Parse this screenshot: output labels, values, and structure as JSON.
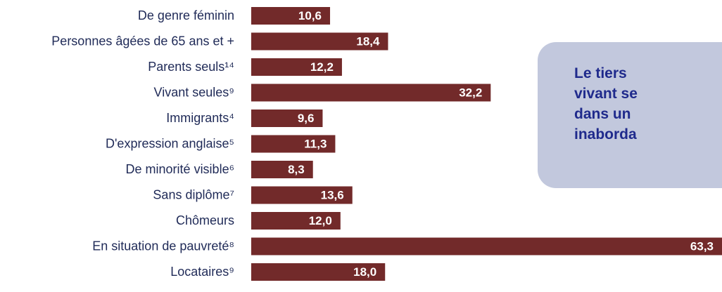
{
  "chart_data": {
    "type": "bar",
    "orientation": "horizontal",
    "categories": [
      "De genre féminin",
      "Personnes âgées de 65 ans et +",
      "Parents seuls¹⁴",
      "Vivant seules⁹",
      "Immigrants⁴",
      "D'expression anglaise⁵",
      "De minorité visible⁶",
      "Sans diplôme⁷",
      "Chômeurs",
      "En situation de pauvreté⁸",
      "Locataires⁹"
    ],
    "values": [
      10.6,
      18.4,
      12.2,
      32.2,
      9.6,
      11.3,
      8.3,
      13.6,
      12.0,
      63.3,
      18.0
    ],
    "value_labels": [
      "10,6",
      "18,4",
      "12,2",
      "32,2",
      "9,6",
      "11,3",
      "8,3",
      "13,6",
      "12,0",
      "63,3",
      "18,0"
    ],
    "bar_color": "#722a2a",
    "label_color": "#1f2a57",
    "grid": false,
    "legend": "none"
  },
  "callout": {
    "lines": [
      "Le tiers",
      "vivant se",
      "dans un",
      "inaborda"
    ],
    "background": "#c2c8dd",
    "text_color": "#1f2a8c"
  }
}
